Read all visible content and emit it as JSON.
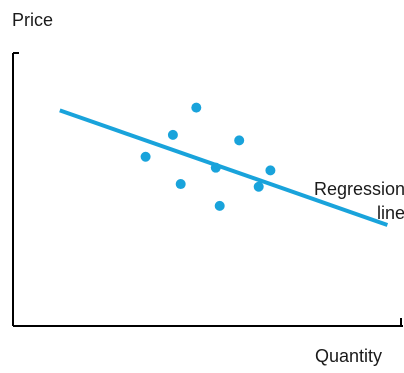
{
  "chart_data": {
    "type": "scatter",
    "ylabel": "Price",
    "xlabel": "Quantity",
    "ticks": "none",
    "grid": false,
    "series": [
      {
        "points": [
          [
            0.34,
            0.62
          ],
          [
            0.41,
            0.7
          ],
          [
            0.47,
            0.8
          ],
          [
            0.52,
            0.58
          ],
          [
            0.58,
            0.68
          ],
          [
            0.43,
            0.52
          ],
          [
            0.63,
            0.51
          ],
          [
            0.66,
            0.57
          ],
          [
            0.53,
            0.44
          ]
        ],
        "color": "#19a3db"
      }
    ],
    "regression_line": {
      "points": [
        [
          0.12,
          0.79
        ],
        [
          0.96,
          0.37
        ]
      ],
      "color": "#19a3db"
    },
    "annotation": {
      "lines": [
        "Regression",
        "line"
      ]
    }
  }
}
